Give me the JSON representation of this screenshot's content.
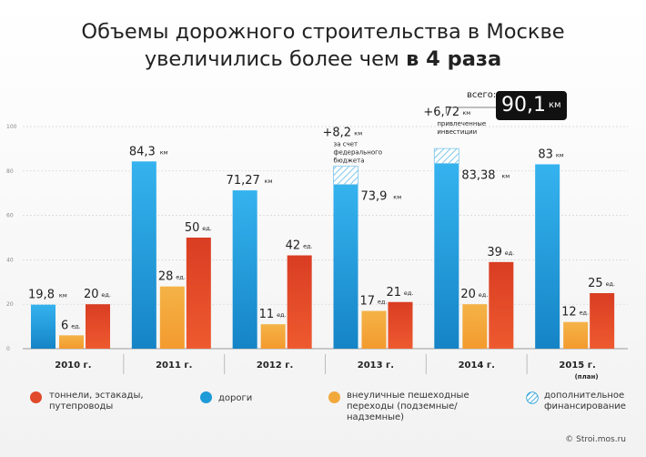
{
  "title": {
    "line1": "Объемы дорожного строительства в Москве",
    "line2_plain": "увеличились более чем ",
    "line2_bold": "в 4 раза"
  },
  "total": {
    "label": "всего:",
    "value": "90,1",
    "unit": "км"
  },
  "colors": {
    "roads": "#1f9ad8",
    "tunnels": "#e0492a",
    "crossings": "#f2a93b",
    "extra": "#7ec6ea"
  },
  "chart_data": {
    "type": "bar",
    "ylim": [
      0,
      100
    ],
    "yticks": [
      "0",
      "20",
      "40",
      "60",
      "80",
      "100"
    ],
    "grid": true,
    "categories": [
      "2010 г.",
      "2011 г.",
      "2012 г.",
      "2013 г.",
      "2014 г.",
      "2015 г."
    ],
    "category_notes": [
      "",
      "",
      "",
      "",
      "",
      "(план)"
    ],
    "series": [
      {
        "name": "дороги",
        "key": "roads",
        "values": [
          19.8,
          84.3,
          71.27,
          73.9,
          83.38,
          83
        ],
        "labels": [
          "19,8",
          "84,3",
          "71,27",
          "73,9",
          "83,38",
          "83"
        ],
        "unit": "км"
      },
      {
        "name": "внеуличные пешеходные переходы (подземные/надземные)",
        "key": "crossings",
        "values": [
          6,
          28,
          11,
          17,
          20,
          12
        ],
        "labels": [
          "6",
          "28",
          "11",
          "17",
          "20",
          "12"
        ],
        "unit": "ед."
      },
      {
        "name": "тоннели, эстакады, путепроводы",
        "key": "tunnels",
        "values": [
          20,
          50,
          42,
          21,
          39,
          25
        ],
        "labels": [
          "20",
          "50",
          "42",
          "21",
          "39",
          "25"
        ],
        "unit": "ед."
      }
    ],
    "additional_financing": [
      {
        "category": "2013 г.",
        "value": 8.2,
        "label": "+8,2",
        "unit": "км",
        "note": [
          "за счет",
          "федерального",
          "бюджета"
        ]
      },
      {
        "category": "2014 г.",
        "value": 6.72,
        "label": "+6,72",
        "unit": "км",
        "note": [
          "привлеченные",
          "инвестиции"
        ]
      }
    ]
  },
  "legend": [
    {
      "key": "tunnels",
      "text": "тоннели, эстакады, путепроводы"
    },
    {
      "key": "roads",
      "text": "дороги"
    },
    {
      "key": "crossings",
      "text": "внеуличные пешеходные переходы (подземные/надземные)"
    },
    {
      "key": "extra",
      "text": "дополнительное финансирование"
    }
  ],
  "footer": "© Stroi.mos.ru"
}
